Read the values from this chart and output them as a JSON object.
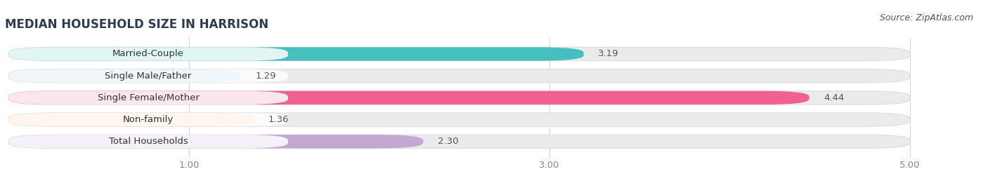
{
  "title": "MEDIAN HOUSEHOLD SIZE IN HARRISON",
  "source": "Source: ZipAtlas.com",
  "categories": [
    "Married-Couple",
    "Single Male/Father",
    "Single Female/Mother",
    "Non-family",
    "Total Households"
  ],
  "values": [
    3.19,
    1.29,
    4.44,
    1.36,
    2.3
  ],
  "colors": [
    "#45bfbf",
    "#a8c4e0",
    "#f06090",
    "#f5c99a",
    "#c4a8d4"
  ],
  "xmin": 0.0,
  "xmax": 5.0,
  "xticks": [
    1.0,
    3.0,
    5.0
  ],
  "xticklabels": [
    "1.00",
    "3.00",
    "5.00"
  ],
  "bar_height": 0.62,
  "figure_bg": "#ffffff",
  "bar_bg_color": "#ebebeb",
  "label_bg_color": "#ffffff",
  "title_fontsize": 12,
  "label_fontsize": 9.5,
  "value_fontsize": 9.5,
  "source_fontsize": 9,
  "grid_color": "#d5d5d5",
  "tick_color": "#888888",
  "value_color": "#555555",
  "label_color": "#333333"
}
